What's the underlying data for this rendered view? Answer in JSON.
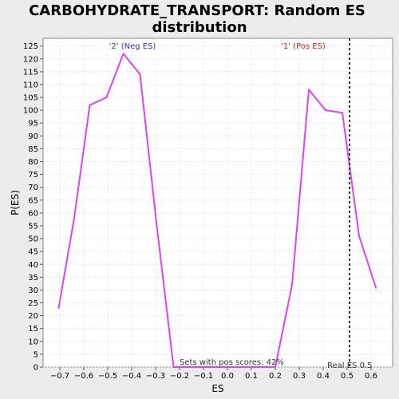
{
  "chart_data": {
    "type": "line",
    "title_line1": "CARBOHYDRATE_TRANSPORT: Random ES",
    "title_line2": "distribution",
    "xlabel": "ES",
    "ylabel": "P(ES)",
    "xlim": [
      -0.77,
      0.69
    ],
    "ylim": [
      0,
      128
    ],
    "x_ticks": [
      -0.7,
      -0.6,
      -0.5,
      -0.4,
      -0.3,
      -0.2,
      -0.1,
      0.0,
      0.1,
      0.2,
      0.3,
      0.4,
      0.5,
      0.6
    ],
    "x_tick_labels": [
      "−0.7",
      "−0.6",
      "−0.5",
      "−0.4",
      "−0.3",
      "−0.2",
      "−0.1",
      "0.0",
      "0.1",
      "0.2",
      "0.3",
      "0.4",
      "0.5",
      "0.6"
    ],
    "y_ticks": [
      0,
      5,
      10,
      15,
      20,
      25,
      30,
      35,
      40,
      45,
      50,
      55,
      60,
      65,
      70,
      75,
      80,
      85,
      90,
      95,
      100,
      105,
      110,
      115,
      120,
      125
    ],
    "grid": true,
    "series": [
      {
        "color": "#e040fb",
        "x": [
          -0.705,
          -0.64,
          -0.575,
          -0.505,
          -0.435,
          -0.365,
          -0.295,
          -0.225,
          0.2,
          0.27,
          0.34,
          0.41,
          0.48,
          0.55,
          0.62
        ],
        "y": [
          23,
          58,
          102,
          105,
          122,
          114,
          55,
          0,
          0,
          32,
          108,
          100,
          99,
          51,
          31
        ]
      }
    ],
    "annotations": {
      "neg_label": "'2' (Neg ES)",
      "neg_color": "#3333cc",
      "pos_label": "'1' (Pos ES)",
      "pos_color": "#cc2222",
      "sets_text": "Sets with pos scores: 42%",
      "real_es_text": "Real ES 0.5",
      "real_es_value": 0.51
    }
  }
}
